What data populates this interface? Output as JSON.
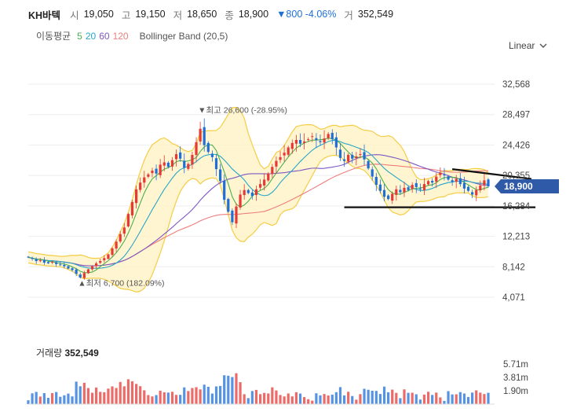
{
  "header": {
    "name": "KH바텍",
    "open_label": "시",
    "open": "19,050",
    "high_label": "고",
    "high": "19,150",
    "low_label": "저",
    "low": "18,650",
    "close_label": "종",
    "close": "18,900",
    "change": "▼800 -4.06%",
    "volume_label": "거",
    "volume": "352,549"
  },
  "indicators": {
    "ma_title": "이동평균",
    "ma_periods": [
      {
        "label": "5",
        "color": "#4caf50"
      },
      {
        "label": "20",
        "color": "#26a6c9"
      },
      {
        "label": "60",
        "color": "#7e57c2"
      },
      {
        "label": "120",
        "color": "#ef7d7d"
      }
    ],
    "bollinger": "Bollinger Band (20,5)"
  },
  "scale_menu": {
    "label": "Linear",
    "icon": "chevron-down-icon"
  },
  "colors": {
    "up": "#e53935",
    "down": "#1f6fd9",
    "band_fill": "#fff3c4",
    "band_line": "#f5cd45",
    "price_tag": "#2e5aa8"
  },
  "chart_data": {
    "type": "candlestick",
    "y_ticks": [
      "32,568",
      "28,497",
      "24,426",
      "20,355",
      "16,284",
      "12,213",
      "8,142",
      "4,071"
    ],
    "y_tick_values": [
      32568,
      28497,
      24426,
      20355,
      16284,
      12213,
      8142,
      4071
    ],
    "last_price": "18,900",
    "last_price_value": 18900,
    "annotations": {
      "high": "▼최고 26,600 (-28.95%)",
      "high_value": 26600,
      "low": "▲최저 6,700 (182.09%)",
      "low_value": 6700
    },
    "closes": [
      9400,
      9200,
      8900,
      9000,
      8700,
      8600,
      8800,
      8500,
      8400,
      8200,
      7900,
      7700,
      7200,
      6700,
      7300,
      7800,
      8200,
      8600,
      8900,
      9300,
      9800,
      10600,
      11500,
      12500,
      13400,
      15200,
      16800,
      18500,
      19400,
      20100,
      20500,
      21000,
      20600,
      21800,
      22100,
      21500,
      22400,
      23200,
      22600,
      21400,
      21900,
      23100,
      24800,
      26600,
      24400,
      23500,
      22800,
      21200,
      19600,
      17100,
      15500,
      14100,
      16200,
      17800,
      18400,
      18000,
      17600,
      18500,
      19200,
      19800,
      20600,
      21500,
      22300,
      22800,
      23400,
      24100,
      24700,
      25100,
      24600,
      24900,
      25200,
      25600,
      25100,
      24800,
      25300,
      25900,
      25200,
      24100,
      22700,
      22300,
      23100,
      22600,
      22900,
      23200,
      22500,
      21300,
      20200,
      19100,
      18300,
      17500,
      17200,
      17900,
      18500,
      18100,
      18700,
      18400,
      19100,
      18800,
      18500,
      19200,
      19600,
      19400,
      20200,
      20700,
      20400,
      19800,
      19500,
      19900,
      19200,
      18600,
      18300,
      17800,
      18400,
      19000,
      19700,
      18900
    ],
    "trendlines": [
      {
        "from": [
          106,
          21200
        ],
        "to": [
          115,
          20200
        ]
      },
      {
        "from": [
          79,
          16100
        ],
        "to": [
          116,
          16100
        ]
      }
    ],
    "volume": {
      "title": "거래량",
      "value": "352,549",
      "ticks": [
        "5.71m",
        "3.81m",
        "1.90m"
      ],
      "tick_values": [
        5.71,
        3.81,
        1.9
      ]
    }
  }
}
